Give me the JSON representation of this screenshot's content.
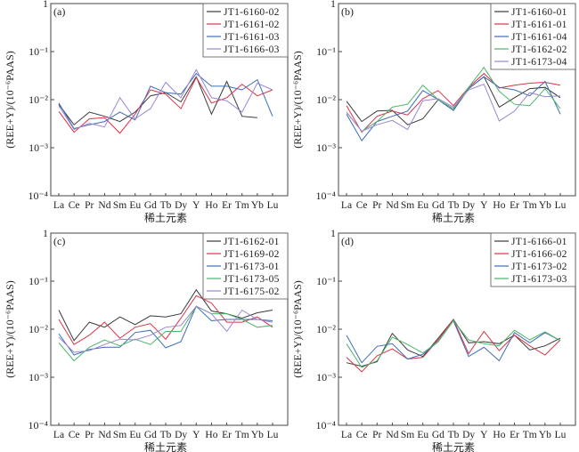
{
  "chart_data": [
    {
      "type": "line",
      "panel_label": "(a)",
      "xlabel": "稀土元素",
      "ylabel": "(REE+Y)/(10⁻⁶PAAS)",
      "yscale": "log",
      "ylim": [
        0.0001,
        1
      ],
      "ytick_labels": [
        "1",
        "10⁻¹",
        "10⁻²",
        "10⁻³",
        "10⁻⁴"
      ],
      "legend_position": "top-right",
      "categories": [
        "La",
        "Ce",
        "Pr",
        "Nd",
        "Sm",
        "Eu",
        "Gd",
        "Tb",
        "Dy",
        "Y",
        "Ho",
        "Er",
        "Tm",
        "Yb",
        "Lu"
      ],
      "series": [
        {
          "name": "JT1-6160-02",
          "color": "#3a3a3a",
          "values": [
            0.008,
            0.003,
            0.0055,
            0.0045,
            0.0035,
            0.0055,
            0.012,
            0.014,
            0.009,
            0.03,
            0.005,
            0.024,
            0.0045,
            0.0042,
            null
          ]
        },
        {
          "name": "JT1-6161-02",
          "color": "#d8344a",
          "values": [
            0.0057,
            0.0021,
            0.004,
            0.0042,
            0.002,
            0.005,
            0.016,
            0.013,
            0.0065,
            0.029,
            0.0085,
            0.011,
            0.021,
            0.012,
            0.016
          ]
        },
        {
          "name": "JT1-6161-03",
          "color": "#3d6db5",
          "values": [
            0.0085,
            0.0025,
            0.003,
            0.0035,
            0.0055,
            0.0038,
            0.019,
            0.014,
            0.013,
            0.035,
            0.019,
            0.019,
            0.016,
            0.026,
            0.0045
          ]
        },
        {
          "name": "JT1-6166-03",
          "color": "#9a86d0",
          "values": [
            0.0075,
            0.0024,
            0.0032,
            0.0027,
            0.011,
            0.004,
            0.0065,
            0.023,
            0.011,
            0.042,
            0.011,
            0.0095,
            0.0055,
            0.022,
            0.016
          ]
        }
      ]
    },
    {
      "type": "line",
      "panel_label": "(b)",
      "xlabel": "稀土元素",
      "ylabel": "(REE+Y)/(10⁻⁶PAAS)",
      "yscale": "log",
      "ylim": [
        0.0001,
        1
      ],
      "ytick_labels": [
        "1",
        "10⁻¹",
        "10⁻²",
        "10⁻³",
        "10⁻⁴"
      ],
      "legend_position": "top-right",
      "categories": [
        "La",
        "Ce",
        "Pr",
        "Nd",
        "Sm",
        "Eu",
        "Gd",
        "Tb",
        "Dy",
        "Y",
        "Ho",
        "Er",
        "Tm",
        "Yb",
        "Lu"
      ],
      "series": [
        {
          "name": "JT1-6160-01",
          "color": "#3a3a3a",
          "values": [
            0.0093,
            0.0035,
            0.0058,
            0.006,
            0.003,
            0.004,
            0.01,
            0.006,
            0.017,
            0.03,
            0.007,
            0.011,
            0.017,
            0.018,
            0.011
          ]
        },
        {
          "name": "JT1-6161-01",
          "color": "#d8344a",
          "values": [
            0.0075,
            0.0021,
            0.0045,
            0.0058,
            0.0048,
            0.0105,
            0.0155,
            0.0075,
            0.018,
            0.035,
            0.0175,
            0.02,
            0.022,
            0.023,
            0.02
          ]
        },
        {
          "name": "JT1-6161-04",
          "color": "#3d6db5",
          "values": [
            0.005,
            0.0014,
            0.0035,
            0.0045,
            0.0058,
            0.0155,
            0.01,
            0.006,
            0.017,
            0.03,
            0.018,
            0.016,
            0.012,
            0.024,
            0.005
          ]
        },
        {
          "name": "JT1-6162-02",
          "color": "#4cb56a",
          "values": [
            0.0055,
            0.0022,
            0.0035,
            0.007,
            0.008,
            0.02,
            0.01,
            0.0065,
            0.018,
            0.047,
            0.015,
            0.008,
            0.0075,
            0.017,
            0.0065
          ]
        },
        {
          "name": "JT1-6173-04",
          "color": "#9a86d0",
          "values": [
            0.0055,
            0.0022,
            0.003,
            0.0037,
            0.0024,
            0.0095,
            0.0105,
            0.007,
            0.016,
            0.021,
            0.0036,
            0.0058,
            0.014,
            0.0115,
            0.012
          ]
        }
      ]
    },
    {
      "type": "line",
      "panel_label": "(c)",
      "xlabel": "稀土元素",
      "ylabel": "(REE+Y)/(10⁻⁶PAAS)",
      "yscale": "log",
      "ylim": [
        0.0001,
        1
      ],
      "ytick_labels": [
        "1",
        "10⁻¹",
        "10⁻²",
        "10⁻³",
        "10⁻⁴"
      ],
      "legend_position": "top-right",
      "categories": [
        "La",
        "Ce",
        "Pr",
        "Nd",
        "Sm",
        "Eu",
        "Gd",
        "Tb",
        "Dy",
        "Y",
        "Ho",
        "Er",
        "Tm",
        "Yb",
        "Lu"
      ],
      "series": [
        {
          "name": "JT1-6162-01",
          "color": "#3a3a3a",
          "values": [
            0.025,
            0.0058,
            0.014,
            0.011,
            0.018,
            0.0125,
            0.019,
            0.018,
            0.021,
            0.066,
            0.024,
            0.021,
            0.017,
            0.022,
            0.025
          ]
        },
        {
          "name": "JT1-6169-02",
          "color": "#d8344a",
          "values": [
            0.016,
            0.0048,
            0.0075,
            0.014,
            0.0065,
            0.011,
            0.013,
            0.0062,
            0.017,
            0.05,
            0.035,
            0.014,
            0.014,
            0.018,
            0.011
          ]
        },
        {
          "name": "JT1-6173-01",
          "color": "#3d6db5",
          "values": [
            0.008,
            0.0029,
            0.0038,
            0.0042,
            0.0042,
            0.0085,
            0.0095,
            0.0041,
            0.0055,
            0.03,
            0.015,
            0.016,
            0.016,
            0.016,
            0.015
          ]
        },
        {
          "name": "JT1-6173-05",
          "color": "#4cb56a",
          "values": [
            0.0052,
            0.0022,
            0.0042,
            0.006,
            0.0045,
            0.0062,
            0.0048,
            0.009,
            0.009,
            0.03,
            0.021,
            0.021,
            0.016,
            0.011,
            0.012
          ]
        },
        {
          "name": "JT1-6175-02",
          "color": "#9a86d0",
          "values": [
            0.0068,
            0.0033,
            0.0036,
            0.0048,
            0.0062,
            0.006,
            0.0075,
            0.011,
            0.012,
            0.03,
            0.021,
            0.009,
            0.025,
            0.016,
            0.014
          ]
        }
      ]
    },
    {
      "type": "line",
      "panel_label": "(d)",
      "xlabel": "稀土元素",
      "ylabel": "(REE+Y)/(10⁻⁶PAAS)",
      "yscale": "log",
      "ylim": [
        0.0001,
        1
      ],
      "ytick_labels": [
        "1",
        "10⁻¹",
        "10⁻²",
        "10⁻³",
        "10⁻⁴"
      ],
      "legend_position": "top-right",
      "categories": [
        "La",
        "Ce",
        "Pr",
        "Nd",
        "Sm",
        "Eu",
        "Gd",
        "Tb",
        "Dy",
        "Y",
        "Ho",
        "Er",
        "Tm",
        "Yb",
        "Lu"
      ],
      "series": [
        {
          "name": "JT1-6166-01",
          "color": "#3a3a3a",
          "values": [
            0.002,
            0.0017,
            0.0021,
            0.0082,
            0.0037,
            0.0027,
            0.0065,
            0.016,
            0.0052,
            0.0055,
            0.005,
            0.0075,
            0.0037,
            0.0045,
            0.0065
          ]
        },
        {
          "name": "JT1-6166-02",
          "color": "#d8344a",
          "values": [
            0.0026,
            0.0013,
            0.0028,
            0.0039,
            0.0024,
            0.0026,
            0.006,
            0.016,
            0.0031,
            0.009,
            0.0036,
            0.0075,
            0.0045,
            0.0029,
            0.006
          ]
        },
        {
          "name": "JT1-6173-02",
          "color": "#3d6db5",
          "values": [
            0.0075,
            0.002,
            0.0044,
            0.005,
            0.0024,
            0.003,
            0.0055,
            0.015,
            0.0027,
            0.0042,
            0.0022,
            0.0085,
            0.0052,
            0.0085,
            0.0058
          ]
        },
        {
          "name": "JT1-6173-03",
          "color": "#4cb56a",
          "values": [
            0.005,
            0.0016,
            0.0022,
            0.0068,
            0.0048,
            0.0032,
            0.0055,
            0.015,
            0.006,
            0.005,
            0.0045,
            0.0095,
            0.006,
            0.0088,
            0.0058
          ]
        }
      ]
    }
  ]
}
